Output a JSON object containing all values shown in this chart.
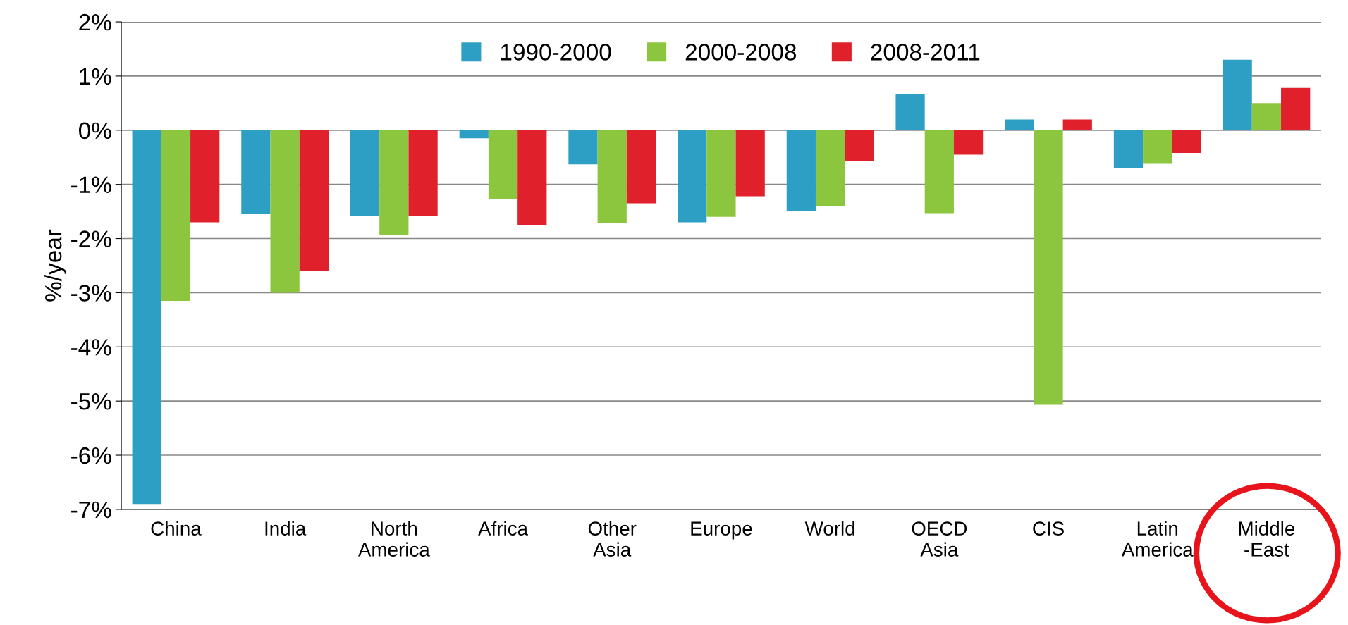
{
  "chart_data": {
    "type": "bar",
    "ylabel": "%/year",
    "categories": [
      "China",
      "India",
      "North\nAmerica",
      "Africa",
      "Other\nAsia",
      "Europe",
      "World",
      "OECD\nAsia",
      "CIS",
      "Latin\nAmerica",
      "Middle\n-East"
    ],
    "series": [
      {
        "name": "1990-2000",
        "color": "#2e9fc4",
        "values": [
          -6.9,
          -1.55,
          -1.58,
          -0.15,
          -0.63,
          -1.7,
          -1.5,
          0.67,
          0.2,
          -0.7,
          1.3
        ]
      },
      {
        "name": "2000-2008",
        "color": "#8cc63e",
        "values": [
          -3.15,
          -3.0,
          -1.93,
          -1.27,
          -1.72,
          -1.6,
          -1.4,
          -1.53,
          -5.07,
          -0.62,
          0.5
        ]
      },
      {
        "name": "2008-2011",
        "color": "#e0202a",
        "values": [
          -1.7,
          -2.6,
          -1.58,
          -1.75,
          -1.35,
          -1.22,
          -0.57,
          -0.45,
          0.2,
          -0.42,
          0.78
        ]
      }
    ],
    "ylim": [
      -7,
      2
    ],
    "yticks": [
      {
        "value": -7,
        "label": "-7%"
      },
      {
        "value": -6,
        "label": "-6%"
      },
      {
        "value": -5,
        "label": "-5%"
      },
      {
        "value": -4,
        "label": "-4%"
      },
      {
        "value": -3,
        "label": "-3%"
      },
      {
        "value": -2,
        "label": "-2%"
      },
      {
        "value": -1,
        "label": "-1%"
      },
      {
        "value": 0,
        "label": "0%"
      },
      {
        "value": 1,
        "label": "1%"
      },
      {
        "value": 2,
        "label": "2%"
      }
    ],
    "grid": "y",
    "legend": "top"
  }
}
